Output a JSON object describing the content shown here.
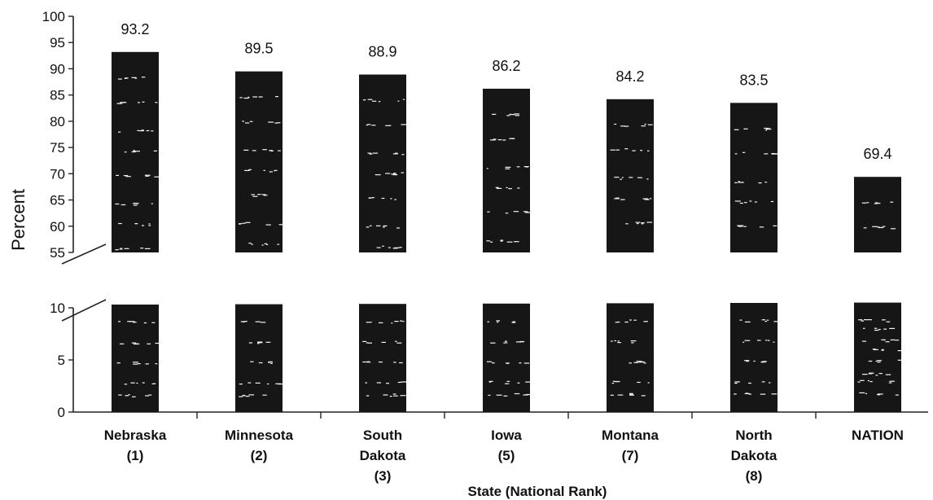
{
  "chart_data": {
    "type": "bar",
    "title": "",
    "xlabel": "State (National Rank)",
    "ylabel": "Percent",
    "axis_break": [
      10,
      55
    ],
    "lower_range": [
      0,
      10
    ],
    "upper_range": [
      55,
      100
    ],
    "upper_ticks": [
      "55",
      "60",
      "65",
      "70",
      "75",
      "80",
      "85",
      "90",
      "95",
      "100"
    ],
    "lower_ticks": [
      "0",
      "5",
      "10"
    ],
    "categories": [
      [
        "Nebraska",
        "(1)"
      ],
      [
        "Minnesota",
        "(2)"
      ],
      [
        "South",
        "Dakota",
        "(3)"
      ],
      [
        "Iowa",
        "(5)"
      ],
      [
        "Montana",
        "(7)"
      ],
      [
        "North",
        "Dakota",
        "(8)"
      ],
      [
        "NATION"
      ]
    ],
    "values": [
      93.2,
      89.5,
      88.9,
      86.2,
      84.2,
      83.5,
      69.4
    ],
    "data_labels": [
      "93.2",
      "89.5",
      "88.9",
      "86.2",
      "84.2",
      "83.5",
      "69.4"
    ],
    "bar_color": "#161616",
    "grid": false,
    "legend": "none"
  }
}
